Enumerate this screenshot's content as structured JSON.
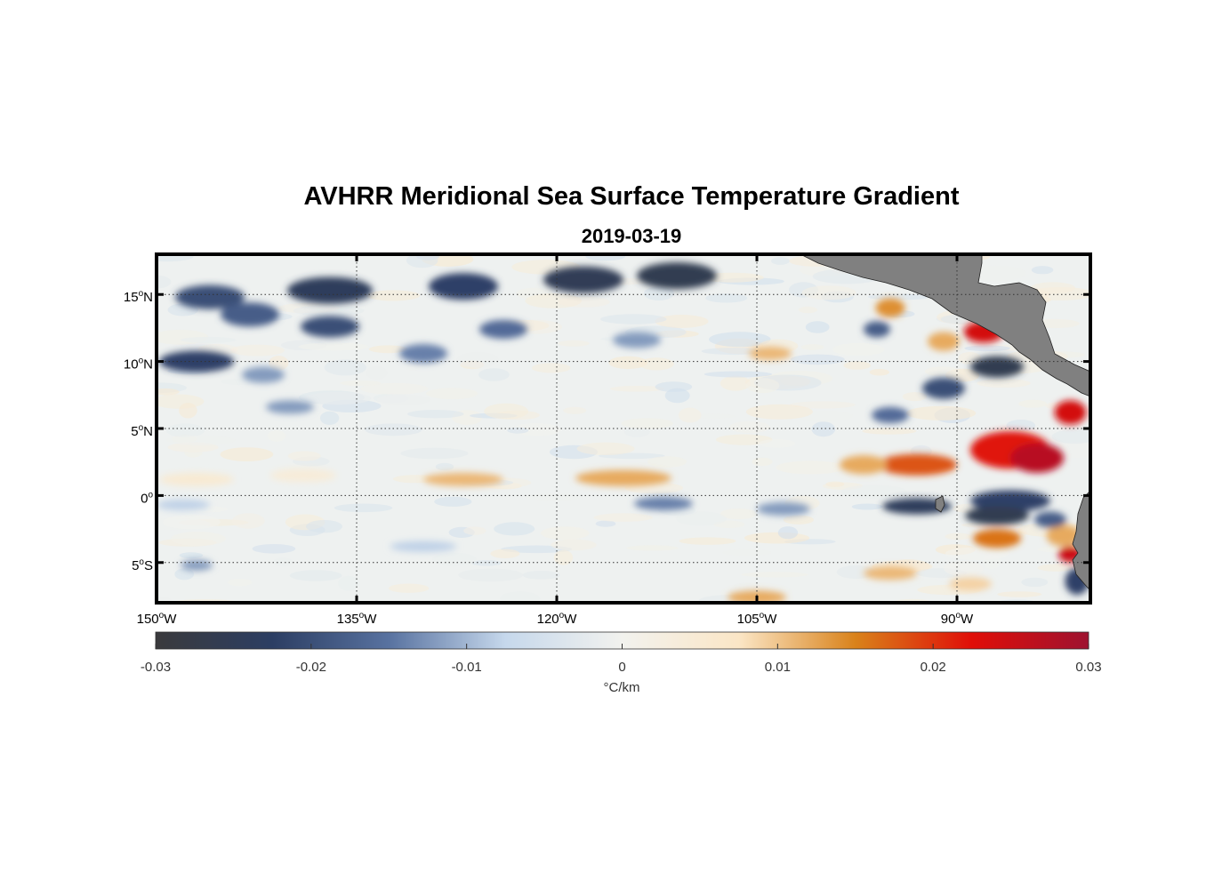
{
  "title": "AVHRR Meridional Sea Surface Temperature Gradient",
  "subtitle": "2019-03-19",
  "map": {
    "lon_range": [
      -150,
      -80
    ],
    "lat_range": [
      -8,
      18
    ],
    "y_ticks": [
      {
        "value": 15,
        "num": "15",
        "hemi": "N"
      },
      {
        "value": 10,
        "num": "10",
        "hemi": "N"
      },
      {
        "value": 5,
        "num": "5",
        "hemi": "N"
      },
      {
        "value": 0,
        "num": "0",
        "hemi": ""
      },
      {
        "value": -5,
        "num": "5",
        "hemi": "S"
      }
    ],
    "x_ticks": [
      {
        "value": -150,
        "num": "150",
        "hemi": "W"
      },
      {
        "value": -135,
        "num": "135",
        "hemi": "W"
      },
      {
        "value": -120,
        "num": "120",
        "hemi": "W"
      },
      {
        "value": -105,
        "num": "105",
        "hemi": "W"
      },
      {
        "value": -90,
        "num": "90",
        "hemi": "W"
      }
    ],
    "degree_symbol": "o",
    "land_color": "#808080",
    "features": [
      {
        "lon": -137,
        "lat": 15.3,
        "rlon": 3.2,
        "rlat": 1.0,
        "v": -0.024
      },
      {
        "lon": -127,
        "lat": 15.6,
        "rlon": 2.6,
        "rlat": 1.0,
        "v": -0.022
      },
      {
        "lon": -118,
        "lat": 16.1,
        "rlon": 3.0,
        "rlat": 1.0,
        "v": -0.025
      },
      {
        "lon": -111,
        "lat": 16.4,
        "rlon": 3.0,
        "rlat": 1.0,
        "v": -0.026
      },
      {
        "lon": -146,
        "lat": 14.8,
        "rlon": 2.6,
        "rlat": 0.9,
        "v": -0.02
      },
      {
        "lon": -143,
        "lat": 13.5,
        "rlon": 2.2,
        "rlat": 0.9,
        "v": -0.018
      },
      {
        "lon": -137,
        "lat": 12.6,
        "rlon": 2.2,
        "rlat": 0.8,
        "v": -0.02
      },
      {
        "lon": -124,
        "lat": 12.4,
        "rlon": 1.8,
        "rlat": 0.7,
        "v": -0.016
      },
      {
        "lon": -147,
        "lat": 10.0,
        "rlon": 2.8,
        "rlat": 0.8,
        "v": -0.022
      },
      {
        "lon": -130,
        "lat": 10.6,
        "rlon": 1.8,
        "rlat": 0.7,
        "v": -0.014
      },
      {
        "lon": -142,
        "lat": 9.0,
        "rlon": 1.6,
        "rlat": 0.6,
        "v": -0.012
      },
      {
        "lon": -140,
        "lat": 6.6,
        "rlon": 1.8,
        "rlat": 0.5,
        "v": -0.012
      },
      {
        "lon": -114,
        "lat": 11.6,
        "rlon": 1.8,
        "rlat": 0.6,
        "v": -0.012
      },
      {
        "lon": -127,
        "lat": 1.2,
        "rlon": 3.0,
        "rlat": 0.5,
        "v": 0.011
      },
      {
        "lon": -115,
        "lat": 1.3,
        "rlon": 3.6,
        "rlat": 0.6,
        "v": 0.012
      },
      {
        "lon": -147,
        "lat": 1.2,
        "rlon": 2.8,
        "rlat": 0.5,
        "v": 0.005
      },
      {
        "lon": -139,
        "lat": 1.5,
        "rlon": 2.5,
        "rlat": 0.5,
        "v": 0.004
      },
      {
        "lon": -104,
        "lat": 10.6,
        "rlon": 1.6,
        "rlat": 0.5,
        "v": 0.011
      },
      {
        "lon": -96,
        "lat": 12.4,
        "rlon": 1.0,
        "rlat": 0.6,
        "v": -0.018
      },
      {
        "lon": -95,
        "lat": 14.0,
        "rlon": 1.1,
        "rlat": 0.7,
        "v": 0.014
      },
      {
        "lon": -91,
        "lat": 11.5,
        "rlon": 1.2,
        "rlat": 0.7,
        "v": 0.012
      },
      {
        "lon": -88,
        "lat": 12.2,
        "rlon": 1.5,
        "rlat": 0.8,
        "v": 0.024
      },
      {
        "lon": -87,
        "lat": 9.6,
        "rlon": 2.0,
        "rlat": 0.8,
        "v": -0.026
      },
      {
        "lon": -91,
        "lat": 8.0,
        "rlon": 1.6,
        "rlat": 0.8,
        "v": -0.02
      },
      {
        "lon": -95,
        "lat": 6.0,
        "rlon": 1.4,
        "rlat": 0.6,
        "v": -0.016
      },
      {
        "lon": -81.5,
        "lat": 6.2,
        "rlon": 1.2,
        "rlat": 0.9,
        "v": 0.024
      },
      {
        "lon": -93,
        "lat": 2.3,
        "rlon": 3.0,
        "rlat": 0.8,
        "v": 0.018
      },
      {
        "lon": -97,
        "lat": 2.3,
        "rlon": 1.8,
        "rlat": 0.7,
        "v": 0.012
      },
      {
        "lon": -86,
        "lat": 3.4,
        "rlon": 3.0,
        "rlat": 1.4,
        "v": 0.022
      },
      {
        "lon": -84,
        "lat": 2.8,
        "rlon": 2.0,
        "rlat": 1.1,
        "v": 0.027
      },
      {
        "lon": -93,
        "lat": -0.8,
        "rlon": 2.6,
        "rlat": 0.6,
        "v": -0.024
      },
      {
        "lon": -86,
        "lat": -0.4,
        "rlon": 3.0,
        "rlat": 0.8,
        "v": -0.022
      },
      {
        "lon": -87,
        "lat": -1.5,
        "rlon": 2.4,
        "rlat": 0.7,
        "v": -0.026
      },
      {
        "lon": -112,
        "lat": -0.6,
        "rlon": 2.2,
        "rlat": 0.5,
        "v": -0.014
      },
      {
        "lon": -103,
        "lat": -1.0,
        "rlon": 2.0,
        "rlat": 0.5,
        "v": -0.012
      },
      {
        "lon": -87,
        "lat": -3.2,
        "rlon": 1.8,
        "rlat": 0.7,
        "v": 0.016
      },
      {
        "lon": -82,
        "lat": -3.0,
        "rlon": 1.3,
        "rlat": 0.8,
        "v": 0.012
      },
      {
        "lon": -81.5,
        "lat": -4.4,
        "rlon": 0.9,
        "rlat": 0.6,
        "v": 0.025
      },
      {
        "lon": -81.0,
        "lat": -6.4,
        "rlon": 0.9,
        "rlat": 1.0,
        "v": -0.022
      },
      {
        "lon": -83,
        "lat": -1.8,
        "rlon": 1.2,
        "rlat": 0.6,
        "v": -0.018
      },
      {
        "lon": -95,
        "lat": -5.8,
        "rlon": 2.0,
        "rlat": 0.5,
        "v": 0.011
      },
      {
        "lon": -89,
        "lat": -6.6,
        "rlon": 1.6,
        "rlat": 0.5,
        "v": 0.009
      },
      {
        "lon": -105,
        "lat": -7.6,
        "rlon": 2.2,
        "rlat": 0.5,
        "v": 0.012
      },
      {
        "lon": -147,
        "lat": -5.2,
        "rlon": 1.2,
        "rlat": 0.4,
        "v": -0.012
      },
      {
        "lon": -130,
        "lat": -3.8,
        "rlon": 2.5,
        "rlat": 0.4,
        "v": -0.008
      },
      {
        "lon": -148,
        "lat": -0.7,
        "rlon": 2.0,
        "rlat": 0.4,
        "v": -0.008
      }
    ]
  },
  "colorbar": {
    "min": -0.03,
    "max": 0.03,
    "ticks": [
      -0.03,
      -0.02,
      -0.01,
      0,
      0.01,
      0.02,
      0.03
    ],
    "tick_labels": [
      "-0.03",
      "-0.02",
      "-0.01",
      "0",
      "0.01",
      "0.02",
      "0.03"
    ],
    "unit_label": "°C/km",
    "stops": [
      "#3a3a3c",
      "#2c3e63",
      "#5872a0",
      "#c6d8ec",
      "#f2f2ee",
      "#fbe6c6",
      "#d9821a",
      "#e00e08",
      "#9e1230"
    ]
  }
}
